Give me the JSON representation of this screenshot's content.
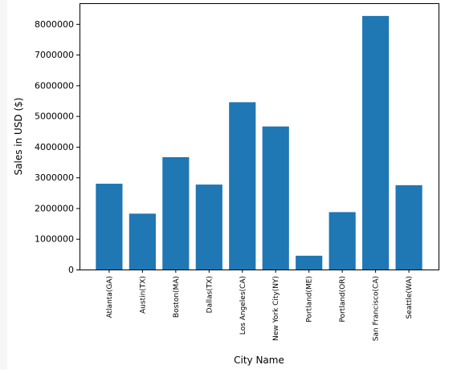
{
  "chart_data": {
    "type": "bar",
    "xlabel": "City Name",
    "ylabel": "Sales in USD ($)",
    "categories": [
      "Atlanta(GA)",
      "Austin(TX)",
      "Boston(MA)",
      "Dallas(TX)",
      "Los Angeles(CA)",
      "New York City(NY)",
      "Portland(ME)",
      "Portland(OR)",
      "San Francisco(CA)",
      "Seattle(WA)"
    ],
    "values": [
      2795000,
      1820000,
      3660000,
      2767000,
      5450000,
      4660000,
      449000,
      1870000,
      8260000,
      2747000
    ],
    "ylim": [
      0,
      8675000
    ],
    "yticks": [
      0,
      1000000,
      2000000,
      3000000,
      4000000,
      5000000,
      6000000,
      7000000,
      8000000
    ],
    "ytick_labels": [
      "0",
      "1000000",
      "2000000",
      "3000000",
      "4000000",
      "5000000",
      "6000000",
      "7000000",
      "8000000"
    ],
    "grid": false,
    "colors": {
      "bar": "#1f77b4",
      "axis": "#000000",
      "background": "#ffffff"
    }
  }
}
